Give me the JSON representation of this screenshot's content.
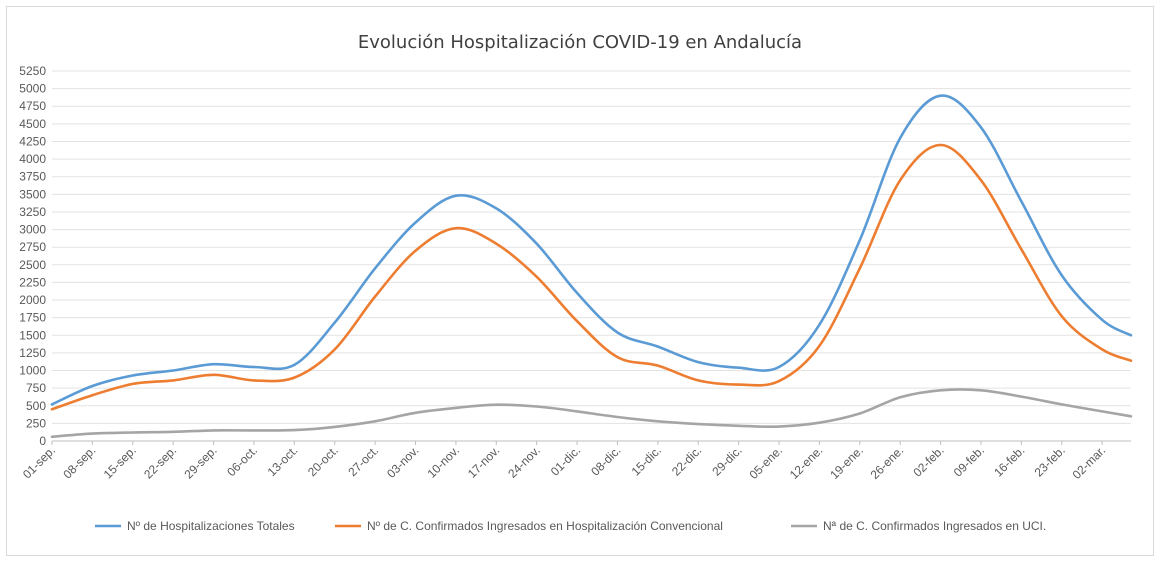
{
  "chart_data": {
    "type": "line",
    "title": "Evolución Hospitalización COVID-19 en Andalucía",
    "xlabel": "",
    "ylabel": "",
    "ylim": [
      0,
      5250
    ],
    "yticks": [
      0,
      250,
      500,
      750,
      1000,
      1250,
      1500,
      1750,
      2000,
      2250,
      2500,
      2750,
      3000,
      3250,
      3500,
      3750,
      4000,
      4250,
      4500,
      4750,
      5000,
      5250
    ],
    "categories": [
      "01-sep.",
      "08-sep.",
      "15-sep.",
      "22-sep.",
      "29-sep.",
      "06-oct.",
      "13-oct.",
      "20-oct.",
      "27-oct.",
      "03-nov.",
      "10-nov.",
      "17-nov.",
      "24-nov.",
      "01-dic.",
      "08-dic.",
      "15-dic.",
      "22-dic.",
      "29-dic.",
      "05-ene.",
      "12-ene.",
      "19-ene.",
      "26-ene.",
      "02-feb.",
      "09-feb.",
      "16-feb.",
      "23-feb.",
      "02-mar."
    ],
    "grid": true,
    "legend_position": "bottom",
    "series": [
      {
        "name": "Nº de Hospitalizaciones Totales",
        "color": "#5b9bd5",
        "values": [
          520,
          780,
          930,
          1000,
          1090,
          1050,
          1080,
          1680,
          2450,
          3100,
          3480,
          3300,
          2800,
          2100,
          1540,
          1340,
          1120,
          1040,
          1050,
          1650,
          2850,
          4300,
          4900,
          4450,
          3400,
          2350,
          1720
        ],
        "end": 1500
      },
      {
        "name": "Nº de C. Confirmados Ingresados en Hospitalización Convencional",
        "color": "#ed7d31",
        "values": [
          450,
          650,
          810,
          860,
          940,
          860,
          900,
          1300,
          2050,
          2700,
          3020,
          2800,
          2330,
          1700,
          1190,
          1070,
          860,
          800,
          850,
          1350,
          2450,
          3700,
          4200,
          3700,
          2720,
          1770,
          1300
        ],
        "end": 1140
      },
      {
        "name": "Nª de C. Confirmados Ingresados en UCI.",
        "color": "#a5a5a5",
        "values": [
          60,
          105,
          120,
          130,
          150,
          150,
          155,
          200,
          280,
          400,
          470,
          515,
          490,
          420,
          340,
          280,
          240,
          215,
          205,
          260,
          390,
          620,
          720,
          720,
          630,
          520,
          420
        ],
        "end": 350
      }
    ]
  }
}
